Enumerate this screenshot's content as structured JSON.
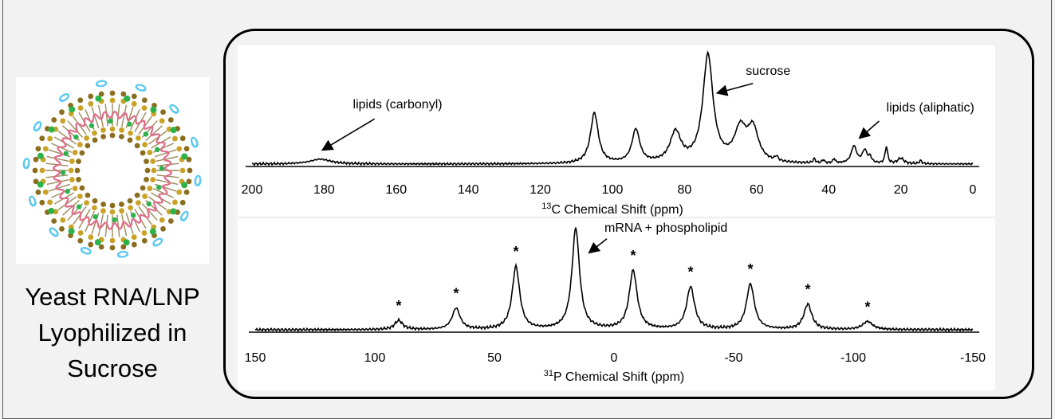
{
  "caption": {
    "lines": [
      "Yeast RNA/LNP",
      "Lyophilized in",
      "Sucrose"
    ]
  },
  "colors": {
    "lipid_head_dark": "#8a6d1e",
    "lipid_head_gold": "#c9a227",
    "rna_pink": "#e06c8c",
    "lipid_tail_green": "#2bb34a",
    "peg_blue": "#5bc8ef",
    "trace": "#000000"
  },
  "chart_data": [
    {
      "type": "line",
      "xlabel_sup": "13",
      "xlabel": "C Chemical Shift (ppm)",
      "xlim": [
        200,
        0
      ],
      "x_reversed": true,
      "xticks": [
        200,
        180,
        160,
        140,
        120,
        100,
        80,
        60,
        40,
        20,
        0
      ],
      "y_visible": false,
      "baseline_noise": 0.012,
      "peaks": [
        {
          "x": 181,
          "h": 0.045,
          "w": 3.5
        },
        {
          "x": 105,
          "h": 0.47,
          "w": 1.3
        },
        {
          "x": 93.5,
          "h": 0.31,
          "w": 1.3
        },
        {
          "x": 82.5,
          "h": 0.28,
          "w": 1.8
        },
        {
          "x": 73.5,
          "h": 1.0,
          "w": 1.7
        },
        {
          "x": 64.5,
          "h": 0.3,
          "w": 2.0
        },
        {
          "x": 61,
          "h": 0.3,
          "w": 1.8
        },
        {
          "x": 54.5,
          "h": 0.04,
          "w": 0.5
        },
        {
          "x": 44,
          "h": 0.04,
          "w": 0.4
        },
        {
          "x": 41.5,
          "h": 0.03,
          "w": 0.4
        },
        {
          "x": 38.5,
          "h": 0.04,
          "w": 0.4
        },
        {
          "x": 33,
          "h": 0.16,
          "w": 0.9
        },
        {
          "x": 30,
          "h": 0.12,
          "w": 0.8
        },
        {
          "x": 28.5,
          "h": 0.05,
          "w": 0.5
        },
        {
          "x": 24,
          "h": 0.16,
          "w": 0.4
        },
        {
          "x": 20,
          "h": 0.05,
          "w": 1.0
        },
        {
          "x": 14.5,
          "h": 0.03,
          "w": 0.4
        }
      ],
      "annotations": [
        {
          "text": "lipids (carbonyl)",
          "label_x": 172,
          "label_y": 0.52,
          "arrow_tail": [
            166,
            0.42
          ],
          "arrow_head": [
            180.5,
            0.13
          ]
        },
        {
          "text": "sucrose",
          "label_x": 63,
          "label_y": 0.83,
          "arrow_tail": [
            61,
            0.75
          ],
          "arrow_head": [
            71,
            0.66
          ]
        },
        {
          "text": "lipids (aliphatic)",
          "label_x": 24,
          "label_y": 0.49,
          "arrow_tail": [
            26,
            0.4
          ],
          "arrow_head": [
            31.5,
            0.24
          ]
        }
      ]
    },
    {
      "type": "line",
      "xlabel_sup": "31",
      "xlabel": "P Chemical Shift (ppm)",
      "xlim": [
        150,
        -150
      ],
      "x_reversed": true,
      "xticks": [
        150,
        100,
        50,
        0,
        -50,
        -100,
        -150
      ],
      "xtick_labels": [
        "150",
        "100",
        "50",
        "0",
        "-50",
        "-100",
        "-150"
      ],
      "y_visible": false,
      "baseline_noise": 0.015,
      "peaks": [
        {
          "x": 90,
          "h": 0.09,
          "w": 2.0
        },
        {
          "x": 66,
          "h": 0.21,
          "w": 2.0
        },
        {
          "x": 41,
          "h": 0.62,
          "w": 1.9
        },
        {
          "x": 16,
          "h": 1.0,
          "w": 1.9
        },
        {
          "x": -8,
          "h": 0.58,
          "w": 2.0
        },
        {
          "x": -32,
          "h": 0.42,
          "w": 2.0
        },
        {
          "x": -57,
          "h": 0.45,
          "w": 2.0
        },
        {
          "x": -81,
          "h": 0.25,
          "w": 2.0
        },
        {
          "x": -106,
          "h": 0.08,
          "w": 2.5
        }
      ],
      "star_marker": "*",
      "stars_at": [
        90,
        66,
        41,
        -8,
        -32,
        -57,
        -81,
        -106
      ],
      "annotations": [
        {
          "text": "mRNA + phospholipid",
          "label_x": 4,
          "label_y": 0.97,
          "arrow_tail": [
            3,
            0.9
          ],
          "arrow_head": [
            10.5,
            0.76
          ]
        }
      ]
    }
  ]
}
